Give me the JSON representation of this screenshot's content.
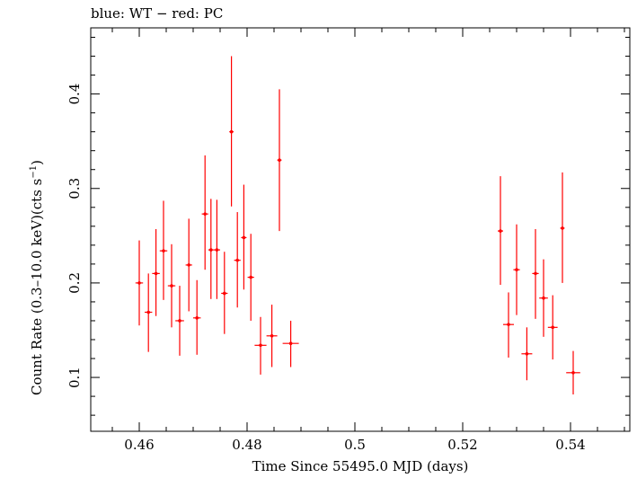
{
  "chart_data": {
    "type": "scatter",
    "title": "blue: WT − red: PC",
    "xlabel": "Time Since 55495.0 MJD (days)",
    "ylabel_text": "Count Rate (0.3–10.0 keV)(cts s",
    "ylabel_sup": "−1",
    "ylabel_end": ")",
    "xlim": [
      0.451,
      0.551
    ],
    "ylim": [
      0.043,
      0.47
    ],
    "x_ticks": [
      0.46,
      0.48,
      0.5,
      0.52,
      0.54
    ],
    "x_tick_labels": [
      "0.46",
      "0.48",
      "0.5",
      "0.52",
      "0.54"
    ],
    "y_ticks": [
      0.1,
      0.2,
      0.3,
      0.4
    ],
    "y_tick_labels": [
      "0.1",
      "0.2",
      "0.3",
      "0.4"
    ],
    "grid": false,
    "series": [
      {
        "color": "#ff0000",
        "points": [
          {
            "x": 0.46,
            "xerr": 0.0007,
            "y": 0.2,
            "ylo": 0.155,
            "yhi": 0.245
          },
          {
            "x": 0.4617,
            "xerr": 0.0007,
            "y": 0.169,
            "ylo": 0.127,
            "yhi": 0.21
          },
          {
            "x": 0.4631,
            "xerr": 0.0007,
            "y": 0.21,
            "ylo": 0.165,
            "yhi": 0.257
          },
          {
            "x": 0.4645,
            "xerr": 0.0007,
            "y": 0.234,
            "ylo": 0.182,
            "yhi": 0.287
          },
          {
            "x": 0.466,
            "xerr": 0.0007,
            "y": 0.197,
            "ylo": 0.153,
            "yhi": 0.241
          },
          {
            "x": 0.4675,
            "xerr": 0.0008,
            "y": 0.16,
            "ylo": 0.123,
            "yhi": 0.197
          },
          {
            "x": 0.4692,
            "xerr": 0.0006,
            "y": 0.219,
            "ylo": 0.17,
            "yhi": 0.268
          },
          {
            "x": 0.4707,
            "xerr": 0.0007,
            "y": 0.163,
            "ylo": 0.124,
            "yhi": 0.203
          },
          {
            "x": 0.4722,
            "xerr": 0.0006,
            "y": 0.273,
            "ylo": 0.214,
            "yhi": 0.335
          },
          {
            "x": 0.4733,
            "xerr": 0.0005,
            "y": 0.235,
            "ylo": 0.183,
            "yhi": 0.289
          },
          {
            "x": 0.4744,
            "xerr": 0.0006,
            "y": 0.235,
            "ylo": 0.183,
            "yhi": 0.288
          },
          {
            "x": 0.4758,
            "xerr": 0.0006,
            "y": 0.189,
            "ylo": 0.146,
            "yhi": 0.233
          },
          {
            "x": 0.4771,
            "xerr": 0.0004,
            "y": 0.36,
            "ylo": 0.281,
            "yhi": 0.44
          },
          {
            "x": 0.4782,
            "xerr": 0.0006,
            "y": 0.224,
            "ylo": 0.174,
            "yhi": 0.275
          },
          {
            "x": 0.4794,
            "xerr": 0.0005,
            "y": 0.248,
            "ylo": 0.193,
            "yhi": 0.304
          },
          {
            "x": 0.4807,
            "xerr": 0.0006,
            "y": 0.206,
            "ylo": 0.16,
            "yhi": 0.252
          },
          {
            "x": 0.4825,
            "xerr": 0.0011,
            "y": 0.134,
            "ylo": 0.103,
            "yhi": 0.164
          },
          {
            "x": 0.4846,
            "xerr": 0.001,
            "y": 0.144,
            "ylo": 0.111,
            "yhi": 0.177
          },
          {
            "x": 0.486,
            "xerr": 0.0004,
            "y": 0.33,
            "ylo": 0.255,
            "yhi": 0.405
          },
          {
            "x": 0.4881,
            "xerr": 0.0015,
            "y": 0.136,
            "ylo": 0.111,
            "yhi": 0.16
          },
          {
            "x": 0.527,
            "xerr": 0.0005,
            "y": 0.255,
            "ylo": 0.198,
            "yhi": 0.313
          },
          {
            "x": 0.5285,
            "xerr": 0.001,
            "y": 0.156,
            "ylo": 0.121,
            "yhi": 0.19
          },
          {
            "x": 0.53,
            "xerr": 0.0006,
            "y": 0.214,
            "ylo": 0.166,
            "yhi": 0.262
          },
          {
            "x": 0.5319,
            "xerr": 0.001,
            "y": 0.125,
            "ylo": 0.097,
            "yhi": 0.153
          },
          {
            "x": 0.5335,
            "xerr": 0.0006,
            "y": 0.21,
            "ylo": 0.162,
            "yhi": 0.257
          },
          {
            "x": 0.535,
            "xerr": 0.0008,
            "y": 0.184,
            "ylo": 0.143,
            "yhi": 0.225
          },
          {
            "x": 0.5367,
            "xerr": 0.0009,
            "y": 0.153,
            "ylo": 0.119,
            "yhi": 0.187
          },
          {
            "x": 0.5385,
            "xerr": 0.0004,
            "y": 0.258,
            "ylo": 0.2,
            "yhi": 0.317
          },
          {
            "x": 0.5405,
            "xerr": 0.0013,
            "y": 0.105,
            "ylo": 0.082,
            "yhi": 0.128
          }
        ]
      }
    ]
  }
}
